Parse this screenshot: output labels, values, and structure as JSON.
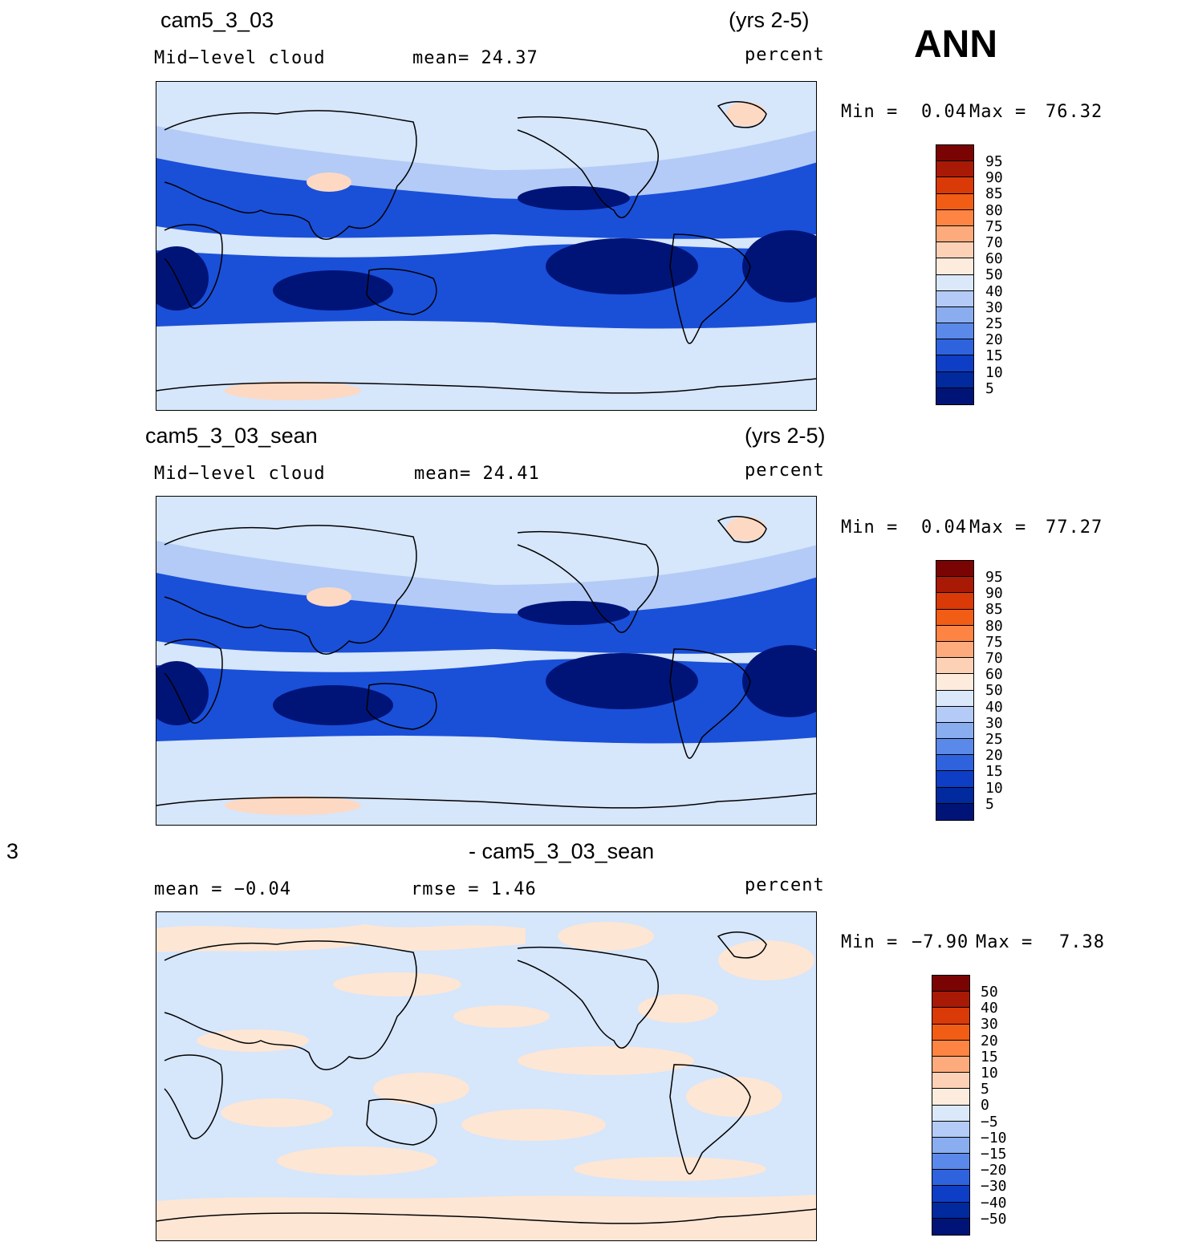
{
  "figure": {
    "season": "ANN"
  },
  "panels": [
    {
      "case_title": "cam5_3_03",
      "years": "(yrs 2-5)",
      "left_label": "Mid−level  cloud",
      "center_label": "mean=   24.37",
      "units": "percent",
      "min_max": {
        "min_label": "Min  =",
        "min_value": "0.04",
        "max_label": "Max  =",
        "max_value": "76.32"
      },
      "colorbar": {
        "labels": [
          "95",
          "90",
          "85",
          "80",
          "75",
          "70",
          "60",
          "50",
          "40",
          "30",
          "25",
          "20",
          "15",
          "10",
          "5"
        ],
        "colors": [
          "#7a0403",
          "#a91a06",
          "#d93a07",
          "#f25d16",
          "#fd8443",
          "#fdab7c",
          "#fdd1b6",
          "#fdecdd",
          "#dbe8fa",
          "#b3cbf6",
          "#8aadf0",
          "#5b89ea",
          "#2f63dd",
          "#0e3ec6",
          "#002a9e",
          "#001478"
        ]
      },
      "regions": {
        "ocean_background": "#d6e6fb",
        "storm_track_color": "#b3cbf6",
        "subtropics_color": "#1a4fd8",
        "stratocumulus_color": "#001478",
        "high_cloud_color": "#fdd9c3"
      }
    },
    {
      "case_title": "cam5_3_03_sean",
      "years": "(yrs 2-5)",
      "left_label": "Mid−level  cloud",
      "center_label": "mean=   24.41",
      "units": "percent",
      "min_max": {
        "min_label": "Min  =",
        "min_value": "0.04",
        "max_label": "Max  =",
        "max_value": "77.27"
      },
      "colorbar": {
        "labels": [
          "95",
          "90",
          "85",
          "80",
          "75",
          "70",
          "60",
          "50",
          "40",
          "30",
          "25",
          "20",
          "15",
          "10",
          "5"
        ],
        "colors": [
          "#7a0403",
          "#a91a06",
          "#d93a07",
          "#f25d16",
          "#fd8443",
          "#fdab7c",
          "#fdd1b6",
          "#fdecdd",
          "#dbe8fa",
          "#b3cbf6",
          "#8aadf0",
          "#5b89ea",
          "#2f63dd",
          "#0e3ec6",
          "#002a9e",
          "#001478"
        ]
      },
      "regions": {
        "ocean_background": "#d6e6fb",
        "storm_track_color": "#b3cbf6",
        "subtropics_color": "#1a4fd8",
        "stratocumulus_color": "#001478",
        "high_cloud_color": "#fdd9c3"
      }
    },
    {
      "case_title_left": "3",
      "case_title": "- cam5_3_03_sean",
      "left_label": "mean  =    −0.04",
      "center_label": "rmse  =     1.46",
      "units": "percent",
      "min_max": {
        "min_label": "Min  =",
        "min_value": "−7.90",
        "max_label": "Max  =",
        "max_value": "7.38"
      },
      "colorbar": {
        "labels": [
          "50",
          "40",
          "30",
          "20",
          "15",
          "10",
          "5",
          "0",
          "−5",
          "−10",
          "−15",
          "−20",
          "−30",
          "−40",
          "−50"
        ],
        "colors": [
          "#7a0403",
          "#a91a06",
          "#d93a07",
          "#f25d16",
          "#fd8443",
          "#fdab7c",
          "#fdd1b6",
          "#fdecdd",
          "#dbe8fa",
          "#b3cbf6",
          "#8aadf0",
          "#5b89ea",
          "#2f63dd",
          "#0e3ec6",
          "#002a9e",
          "#001478"
        ]
      },
      "regions": {
        "ocean_background": "#d6e6fb",
        "positive_color": "#fde6d4"
      }
    }
  ]
}
